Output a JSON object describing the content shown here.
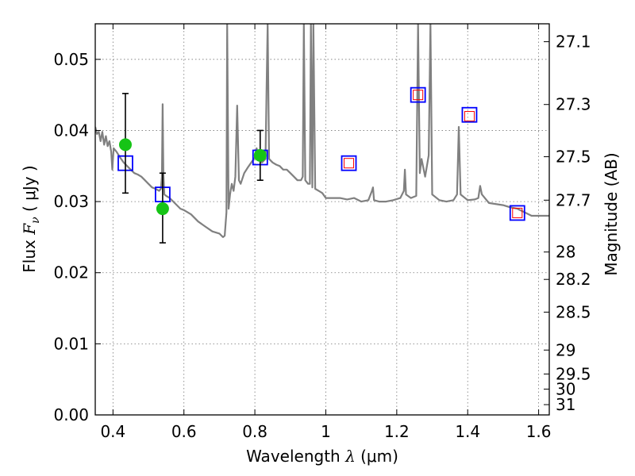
{
  "chart_data": {
    "type": "scatter",
    "xlabel": "Wavelength  λ (μm)",
    "xlabel_parts": {
      "text": "Wavelength  ",
      "symbol": "λ",
      "unit": " (μm)"
    },
    "ylabel": "Flux  Fν  ( μJy )",
    "ylabel_parts": {
      "text": "Flux  ",
      "symbol": "F",
      "subscript": "ν",
      "unit": "  ( μJy )"
    },
    "y2label": "Magnitude (AB)",
    "xlim": [
      0.35,
      1.63
    ],
    "ylim": [
      0.0,
      0.055
    ],
    "x_ticks": [
      0.4,
      0.6,
      0.8,
      1.0,
      1.2,
      1.4,
      1.6
    ],
    "x_tick_labels": [
      "0.4",
      "0.6",
      "0.8",
      "1",
      "1.2",
      "1.4",
      "1.6"
    ],
    "y_ticks": [
      0.0,
      0.01,
      0.02,
      0.03,
      0.04,
      0.05
    ],
    "y_tick_labels": [
      "0.00",
      "0.01",
      "0.02",
      "0.03",
      "0.04",
      "0.05"
    ],
    "y2_ticks": [
      27.1,
      27.3,
      27.5,
      27.7,
      28,
      28.2,
      28.5,
      29,
      29.5,
      30,
      31
    ],
    "y2_tick_labels": [
      "27.1",
      "27.3",
      "27.5",
      "27.7",
      "28",
      "28.2",
      "28.5",
      "29",
      "29.5",
      "30",
      "31"
    ],
    "grid": true,
    "series": [
      {
        "kind": "line",
        "color": "#808080",
        "points": [
          [
            0.35,
            0.0405
          ],
          [
            0.355,
            0.0395
          ],
          [
            0.36,
            0.0398
          ],
          [
            0.365,
            0.0385
          ],
          [
            0.37,
            0.0398
          ],
          [
            0.375,
            0.038
          ],
          [
            0.38,
            0.0392
          ],
          [
            0.385,
            0.0378
          ],
          [
            0.39,
            0.0385
          ],
          [
            0.395,
            0.037
          ],
          [
            0.398,
            0.0345
          ],
          [
            0.402,
            0.0375
          ],
          [
            0.41,
            0.037
          ],
          [
            0.42,
            0.0362
          ],
          [
            0.43,
            0.0355
          ],
          [
            0.44,
            0.035
          ],
          [
            0.45,
            0.0345
          ],
          [
            0.46,
            0.034
          ],
          [
            0.47,
            0.0338
          ],
          [
            0.48,
            0.0335
          ],
          [
            0.49,
            0.033
          ],
          [
            0.5,
            0.0325
          ],
          [
            0.51,
            0.032
          ],
          [
            0.52,
            0.0318
          ],
          [
            0.53,
            0.0315
          ],
          [
            0.535,
            0.0318
          ],
          [
            0.538,
            0.0335
          ],
          [
            0.54,
            0.0437
          ],
          [
            0.542,
            0.034
          ],
          [
            0.545,
            0.031
          ],
          [
            0.55,
            0.0308
          ],
          [
            0.56,
            0.0305
          ],
          [
            0.57,
            0.03
          ],
          [
            0.58,
            0.0295
          ],
          [
            0.59,
            0.029
          ],
          [
            0.6,
            0.0288
          ],
          [
            0.62,
            0.0282
          ],
          [
            0.64,
            0.0272
          ],
          [
            0.66,
            0.0265
          ],
          [
            0.68,
            0.0258
          ],
          [
            0.7,
            0.0255
          ],
          [
            0.71,
            0.025
          ],
          [
            0.715,
            0.0252
          ],
          [
            0.72,
            0.0285
          ],
          [
            0.722,
            0.055
          ],
          [
            0.726,
            0.029
          ],
          [
            0.73,
            0.031
          ],
          [
            0.735,
            0.0325
          ],
          [
            0.74,
            0.0315
          ],
          [
            0.745,
            0.0335
          ],
          [
            0.75,
            0.0435
          ],
          [
            0.755,
            0.033
          ],
          [
            0.76,
            0.0325
          ],
          [
            0.77,
            0.034
          ],
          [
            0.78,
            0.0348
          ],
          [
            0.79,
            0.0355
          ],
          [
            0.8,
            0.0362
          ],
          [
            0.805,
            0.0375
          ],
          [
            0.81,
            0.0365
          ],
          [
            0.82,
            0.0355
          ],
          [
            0.83,
            0.036
          ],
          [
            0.833,
            0.0455
          ],
          [
            0.836,
            0.055
          ],
          [
            0.84,
            0.036
          ],
          [
            0.85,
            0.0355
          ],
          [
            0.86,
            0.0352
          ],
          [
            0.87,
            0.035
          ],
          [
            0.88,
            0.0345
          ],
          [
            0.89,
            0.0345
          ],
          [
            0.9,
            0.034
          ],
          [
            0.91,
            0.0335
          ],
          [
            0.92,
            0.033
          ],
          [
            0.93,
            0.033
          ],
          [
            0.935,
            0.0335
          ],
          [
            0.938,
            0.055
          ],
          [
            0.942,
            0.033
          ],
          [
            0.95,
            0.0325
          ],
          [
            0.955,
            0.0325
          ],
          [
            0.958,
            0.055
          ],
          [
            0.962,
            0.032
          ],
          [
            0.965,
            0.055
          ],
          [
            0.97,
            0.0318
          ],
          [
            0.98,
            0.0315
          ],
          [
            0.99,
            0.0312
          ],
          [
            1.0,
            0.0305
          ],
          [
            1.02,
            0.0305
          ],
          [
            1.04,
            0.0305
          ],
          [
            1.06,
            0.0303
          ],
          [
            1.08,
            0.0305
          ],
          [
            1.1,
            0.03
          ],
          [
            1.12,
            0.0302
          ],
          [
            1.13,
            0.0315
          ],
          [
            1.133,
            0.032
          ],
          [
            1.136,
            0.0302
          ],
          [
            1.15,
            0.03
          ],
          [
            1.17,
            0.03
          ],
          [
            1.19,
            0.0302
          ],
          [
            1.21,
            0.0305
          ],
          [
            1.22,
            0.0315
          ],
          [
            1.223,
            0.0345
          ],
          [
            1.226,
            0.031
          ],
          [
            1.24,
            0.0305
          ],
          [
            1.255,
            0.0308
          ],
          [
            1.26,
            0.055
          ],
          [
            1.265,
            0.034
          ],
          [
            1.27,
            0.036
          ],
          [
            1.28,
            0.0335
          ],
          [
            1.29,
            0.0365
          ],
          [
            1.295,
            0.055
          ],
          [
            1.3,
            0.031
          ],
          [
            1.32,
            0.0302
          ],
          [
            1.34,
            0.03
          ],
          [
            1.36,
            0.0302
          ],
          [
            1.37,
            0.031
          ],
          [
            1.375,
            0.0405
          ],
          [
            1.38,
            0.031
          ],
          [
            1.4,
            0.0302
          ],
          [
            1.42,
            0.0303
          ],
          [
            1.43,
            0.0305
          ],
          [
            1.435,
            0.0322
          ],
          [
            1.44,
            0.031
          ],
          [
            1.46,
            0.0298
          ],
          [
            1.5,
            0.0295
          ],
          [
            1.52,
            0.0292
          ],
          [
            1.54,
            0.029
          ],
          [
            1.56,
            0.0285
          ],
          [
            1.58,
            0.028
          ],
          [
            1.6,
            0.028
          ],
          [
            1.63,
            0.028
          ]
        ]
      },
      {
        "kind": "squares-blue",
        "color": "#0000ff",
        "points": [
          [
            0.435,
            0.0354
          ],
          [
            0.54,
            0.031
          ],
          [
            0.815,
            0.0362
          ],
          [
            1.065,
            0.0354
          ],
          [
            1.26,
            0.045
          ],
          [
            1.405,
            0.0422
          ],
          [
            1.54,
            0.0284
          ]
        ]
      },
      {
        "kind": "squares-red",
        "color": "#ff0000",
        "points": [
          [
            1.065,
            0.0354
          ],
          [
            1.26,
            0.045
          ],
          [
            1.405,
            0.042
          ],
          [
            1.54,
            0.0284
          ]
        ]
      },
      {
        "kind": "points-green",
        "color": "#16c416",
        "points": [
          [
            0.435,
            0.038
          ],
          [
            0.54,
            0.029
          ],
          [
            0.815,
            0.0365
          ]
        ],
        "yerr_low": [
          0.0312,
          0.0242,
          0.033
        ],
        "yerr_high": [
          0.0452,
          0.034,
          0.04
        ]
      }
    ]
  }
}
